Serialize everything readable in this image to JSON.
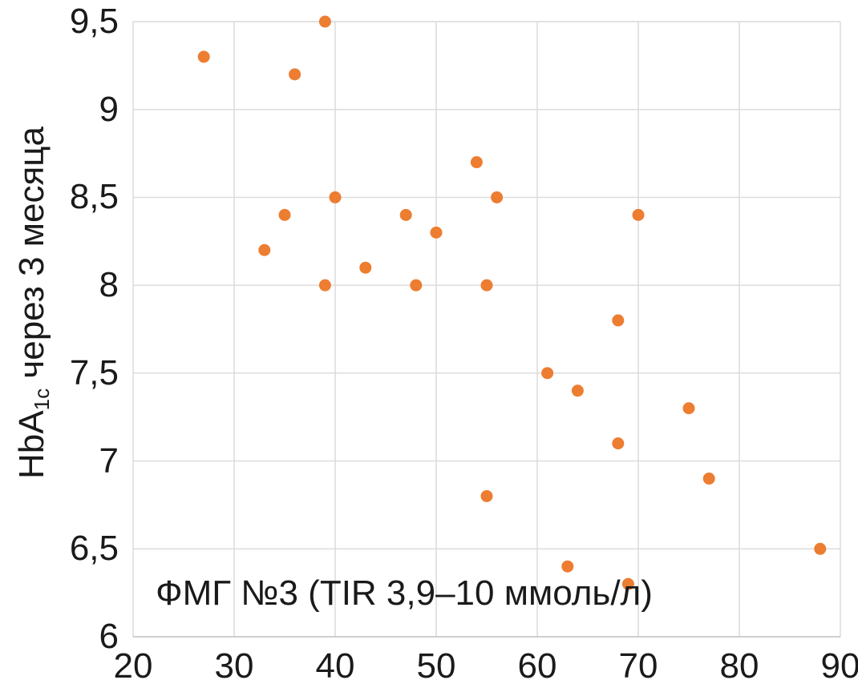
{
  "chart_data": {
    "type": "scatter",
    "title": "",
    "x_axis": {
      "label": "ФМГ №3 (TIR 3,9–10 ммоль/л)",
      "min": 20,
      "max": 90,
      "step": 10,
      "tick_labels": [
        "20",
        "30",
        "40",
        "50",
        "60",
        "70",
        "80",
        "90"
      ]
    },
    "y_axis": {
      "label": "HbA1c через 3 месяца",
      "label_main": "HbA",
      "label_sub": "1c",
      "label_rest": " через 3 месяца",
      "min": 6,
      "max": 9.5,
      "step": 0.5,
      "tick_labels": [
        "6",
        "6,5",
        "7",
        "7,5",
        "8",
        "8,5",
        "9",
        "9,5"
      ]
    },
    "grid": true,
    "legend": "none",
    "marker": {
      "shape": "circle",
      "radius": 7.5
    },
    "colors": {
      "point": "#ED7D31",
      "gridline": "#D9D9D9",
      "axis_line": "#BFBFBF",
      "text": "#1A1A1A",
      "background": "#FFFFFF"
    },
    "series": [
      {
        "points": [
          {
            "x": 27,
            "y": 9.3
          },
          {
            "x": 33,
            "y": 8.2
          },
          {
            "x": 35,
            "y": 8.4
          },
          {
            "x": 36,
            "y": 9.2
          },
          {
            "x": 39,
            "y": 8.0
          },
          {
            "x": 39,
            "y": 9.5
          },
          {
            "x": 40,
            "y": 8.5
          },
          {
            "x": 43,
            "y": 8.1
          },
          {
            "x": 47,
            "y": 8.4
          },
          {
            "x": 48,
            "y": 8.0
          },
          {
            "x": 50,
            "y": 8.3
          },
          {
            "x": 54,
            "y": 8.7
          },
          {
            "x": 55,
            "y": 6.8
          },
          {
            "x": 55,
            "y": 8.0
          },
          {
            "x": 56,
            "y": 8.5
          },
          {
            "x": 61,
            "y": 7.5
          },
          {
            "x": 63,
            "y": 6.4
          },
          {
            "x": 64,
            "y": 7.4
          },
          {
            "x": 68,
            "y": 7.1
          },
          {
            "x": 68,
            "y": 7.8
          },
          {
            "x": 69,
            "y": 6.3
          },
          {
            "x": 70,
            "y": 8.4
          },
          {
            "x": 75,
            "y": 7.3
          },
          {
            "x": 77,
            "y": 6.9
          },
          {
            "x": 88,
            "y": 6.5
          }
        ]
      }
    ]
  }
}
